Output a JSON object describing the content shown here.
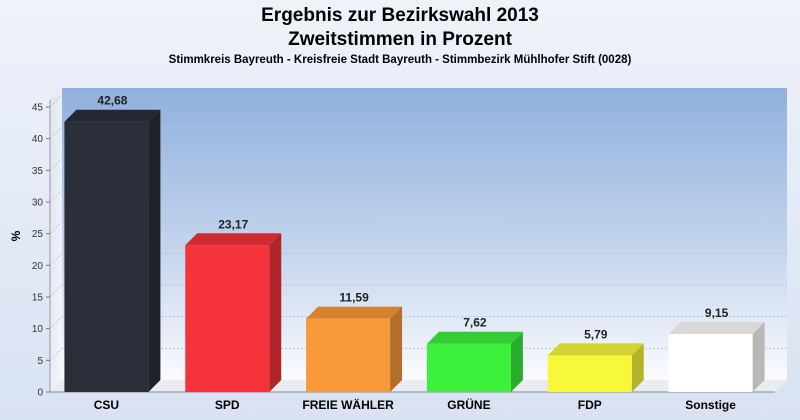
{
  "chart_data": {
    "type": "bar",
    "title": "Ergebnis zur Bezirkswahl 2013",
    "subtitle1": "Zweitstimmen in Prozent",
    "subtitle2": "Stimmkreis Bayreuth - Kreisfreie Stadt Bayreuth - Stimmbezirk Mühlhofer Stift (0028)",
    "ylabel": "%",
    "xlabel": "",
    "ylim": [
      0,
      48
    ],
    "yticks": [
      0,
      5,
      10,
      15,
      20,
      25,
      30,
      35,
      40,
      45
    ],
    "grid": true,
    "categories": [
      "CSU",
      "SPD",
      "FREIE WÄHLER",
      "GRÜNE",
      "FDP",
      "Sonstige"
    ],
    "values": [
      42.68,
      23.17,
      11.59,
      7.62,
      5.79,
      9.15
    ],
    "value_labels": [
      "42,68",
      "23,17",
      "11,59",
      "7,62",
      "5,79",
      "9,15"
    ],
    "colors": [
      "#2b2f3a",
      "#f5333a",
      "#f99a3a",
      "#3cf03c",
      "#f8f83a",
      "#ffffff"
    ]
  }
}
